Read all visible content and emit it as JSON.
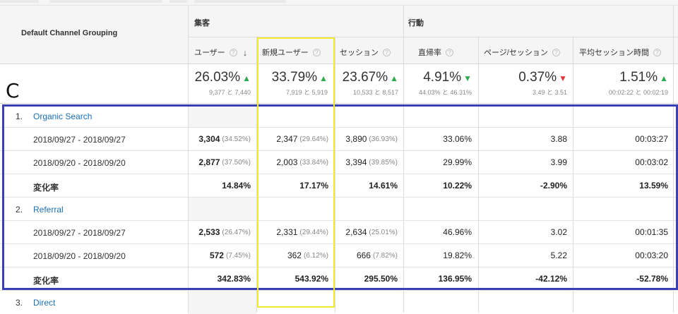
{
  "header": {
    "dimension_title": "Default Channel Grouping",
    "group_acquisition": "集客",
    "group_behavior": "行動",
    "columns": [
      {
        "label": "ユーザー",
        "help": "?",
        "sort": "↓"
      },
      {
        "label": "新規ユーザー",
        "help": "?"
      },
      {
        "label": "セッション",
        "help": "?"
      },
      {
        "label": "直帰率",
        "help": "?"
      },
      {
        "label": "ページ/セッション",
        "help": "?"
      },
      {
        "label": "平均セッション時間",
        "help": "?"
      }
    ]
  },
  "segment_label": "C",
  "summary": [
    {
      "pct": "26.03%",
      "trend": "up",
      "sub": "9,377 と 7,440"
    },
    {
      "pct": "33.79%",
      "trend": "up",
      "sub": "7,919 と 5,919"
    },
    {
      "pct": "23.67%",
      "trend": "up",
      "sub": "10,533 と 8,517"
    },
    {
      "pct": "4.91%",
      "trend": "down-good",
      "sub": "44.03% と 46.31%"
    },
    {
      "pct": "0.37%",
      "trend": "down",
      "sub": "3.49 と 3.51"
    },
    {
      "pct": "1.51%",
      "trend": "up",
      "sub": "00:02:22 と 00:02:19"
    }
  ],
  "trend_colors": {
    "up": "#2bab4b",
    "down": "#e0373a"
  },
  "rows": [
    {
      "type": "cat",
      "num": "1.",
      "name": "Organic Search"
    },
    {
      "type": "sub",
      "label": "2018/09/27 - 2018/09/27",
      "users": "3,304",
      "users_pct": "(34.52%)",
      "new_users": "2,347",
      "new_users_pct": "(29.64%)",
      "sessions": "3,890",
      "sessions_pct": "(36.93%)",
      "bounce": "33.06%",
      "pps": "3.88",
      "duration": "00:03:27"
    },
    {
      "type": "sub",
      "label": "2018/09/20 - 2018/09/20",
      "users": "2,877",
      "users_pct": "(37.50%)",
      "new_users": "2,003",
      "new_users_pct": "(33.84%)",
      "sessions": "3,394",
      "sessions_pct": "(39.85%)",
      "bounce": "29.99%",
      "pps": "3.99",
      "duration": "00:03:02"
    },
    {
      "type": "change",
      "label": "変化率",
      "users": "14.84%",
      "new_users": "17.17%",
      "sessions": "14.61%",
      "bounce": "10.22%",
      "pps": "-2.90%",
      "duration": "13.59%"
    },
    {
      "type": "cat",
      "num": "2.",
      "name": "Referral"
    },
    {
      "type": "sub",
      "label": "2018/09/27 - 2018/09/27",
      "users": "2,533",
      "users_pct": "(26.47%)",
      "new_users": "2,331",
      "new_users_pct": "(29.44%)",
      "sessions": "2,634",
      "sessions_pct": "(25.01%)",
      "bounce": "46.96%",
      "pps": "3.02",
      "duration": "00:01:35"
    },
    {
      "type": "sub",
      "label": "2018/09/20 - 2018/09/20",
      "users": "572",
      "users_pct": "(7.45%)",
      "new_users": "362",
      "new_users_pct": "(6.12%)",
      "sessions": "666",
      "sessions_pct": "(7.82%)",
      "bounce": "19.82%",
      "pps": "5.22",
      "duration": "00:03:20"
    },
    {
      "type": "change",
      "label": "変化率",
      "users": "342.83%",
      "new_users": "543.92%",
      "sessions": "295.50%",
      "bounce": "136.95%",
      "pps": "-42.12%",
      "duration": "-52.78%"
    },
    {
      "type": "cat",
      "num": "3.",
      "name": "Direct"
    }
  ]
}
